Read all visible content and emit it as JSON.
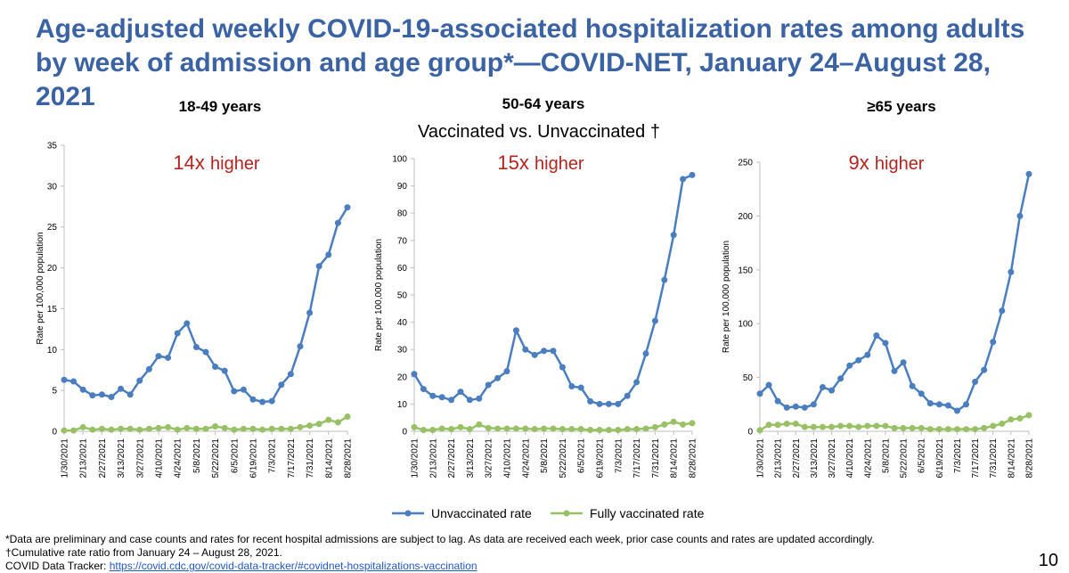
{
  "title": "Age-adjusted weekly COVID-19-associated hospitalization rates among adults by week of admission and age group*—COVID-NET, January 24–August 28, 2021",
  "subtitle": "Vaccinated vs. Unvaccinated †",
  "colors": {
    "title": "#3b63a4",
    "unvaccinated": "#4a7ec0",
    "vaccinated": "#98c064",
    "multiplier": "#b4231f",
    "axis": "#bfbfbf"
  },
  "legend": {
    "unvaccinated": "Unvaccinated rate",
    "vaccinated": "Fully vaccinated rate"
  },
  "footnotes": {
    "line1": "*Data are preliminary and case counts and rates for recent hospital admissions are subject to lag. As data are received each week, prior case counts and rates are updated accordingly.",
    "line2": "†Cumulative rate ratio from January 24 – August 28, 2021.",
    "line3_label": "COVID Data Tracker: ",
    "line3_link": "https://covid.cdc.gov/covid-data-tracker/#covidnet-hospitalizations-vaccination"
  },
  "page_number": "10",
  "chart_data": [
    {
      "type": "line",
      "title": "18-49 years",
      "multiplier_num": "14x",
      "multiplier_word": "higher",
      "ylabel": "Rate per 100,000 population",
      "ylim": [
        0,
        35
      ],
      "yticks": [
        "0",
        "5",
        "10",
        "15",
        "20",
        "25",
        "30",
        "35"
      ],
      "ytick_values": [
        0,
        5,
        10,
        15,
        20,
        25,
        30,
        35
      ],
      "xtick_labels": [
        "1/30/2021",
        "2/13/2021",
        "2/27/2021",
        "3/13/2021",
        "3/27/2021",
        "4/10/2021",
        "4/24/2021",
        "5/8/2021",
        "5/22/2021",
        "6/5/2021",
        "6/19/2021",
        "7/3/2021",
        "7/17/2021",
        "7/31/2021",
        "8/14/2021",
        "8/28/2021"
      ],
      "series": [
        {
          "name": "Unvaccinated rate",
          "values": [
            6.3,
            6.1,
            5.1,
            4.4,
            4.5,
            4.2,
            5.2,
            4.5,
            6.2,
            7.6,
            9.2,
            9.0,
            12.0,
            13.2,
            10.3,
            9.7,
            7.9,
            7.4,
            4.9,
            5.1,
            3.9,
            3.6,
            3.7,
            5.7,
            7.0,
            10.4,
            14.5,
            20.2,
            21.6,
            25.5,
            27.4
          ]
        },
        {
          "name": "Fully vaccinated rate",
          "values": [
            0.1,
            0.1,
            0.5,
            0.2,
            0.3,
            0.2,
            0.3,
            0.3,
            0.2,
            0.3,
            0.4,
            0.5,
            0.2,
            0.4,
            0.3,
            0.3,
            0.6,
            0.4,
            0.2,
            0.3,
            0.3,
            0.2,
            0.3,
            0.3,
            0.3,
            0.5,
            0.7,
            0.9,
            1.4,
            1.1,
            1.8
          ]
        }
      ]
    },
    {
      "type": "line",
      "title": "50-64 years",
      "multiplier_num": "15x",
      "multiplier_word": "higher",
      "ylabel": "Rate per 100,000 population",
      "ylim": [
        0,
        100
      ],
      "yticks": [
        "0",
        "10",
        "20",
        "30",
        "40",
        "50",
        "60",
        "70",
        "80",
        "90",
        "100"
      ],
      "ytick_values": [
        0,
        10,
        20,
        30,
        40,
        50,
        60,
        70,
        80,
        90,
        100
      ],
      "xtick_labels": [
        "1/30/2021",
        "2/13/2021",
        "2/27/2021",
        "3/13/2021",
        "3/27/2021",
        "4/10/2021",
        "4/24/2021",
        "5/8/2021",
        "5/22/2021",
        "6/5/2021",
        "6/19/2021",
        "7/3/2021",
        "7/17/2021",
        "7/31/2021",
        "8/14/2021",
        "8/28/2021"
      ],
      "series": [
        {
          "name": "Unvaccinated rate",
          "values": [
            21,
            15.5,
            13,
            12.5,
            11.5,
            14.5,
            11.5,
            12,
            17,
            19.5,
            22,
            37,
            30,
            28,
            29.5,
            29.5,
            23.5,
            16.5,
            16,
            11,
            10,
            10,
            10,
            13,
            18,
            28.5,
            40.5,
            55.5,
            72,
            92.5,
            94
          ]
        },
        {
          "name": "Fully vaccinated rate",
          "values": [
            1.5,
            0.5,
            0.5,
            1,
            0.8,
            1.5,
            0.8,
            2.5,
            1.2,
            1,
            1,
            1,
            1,
            0.8,
            1,
            1,
            0.8,
            0.8,
            0.8,
            0.5,
            0.5,
            0.5,
            0.5,
            0.8,
            0.8,
            1,
            1.5,
            2.5,
            3.5,
            2.5,
            3
          ]
        }
      ]
    },
    {
      "type": "line",
      "title": "≥65 years",
      "multiplier_num": "9x",
      "multiplier_word": "higher",
      "ylabel": "Rate per 100,000 population",
      "ylim": [
        0,
        250
      ],
      "yticks": [
        "0",
        "50",
        "100",
        "150",
        "200",
        "250"
      ],
      "ytick_values": [
        0,
        50,
        100,
        150,
        200,
        250
      ],
      "xtick_labels": [
        "1/30/2021",
        "2/13/2021",
        "2/27/2021",
        "3/13/2021",
        "3/27/2021",
        "4/10/2021",
        "4/24/2021",
        "5/8/2021",
        "5/22/2021",
        "6/5/2021",
        "6/19/2021",
        "7/3/2021",
        "7/17/2021",
        "7/31/2021",
        "8/14/2021",
        "8/28/2021"
      ],
      "series": [
        {
          "name": "Unvaccinated rate",
          "values": [
            35,
            43,
            28,
            22,
            23,
            22,
            25,
            41,
            38,
            49,
            61,
            66,
            71,
            89,
            82,
            56,
            64,
            42,
            35,
            26,
            25,
            24,
            19,
            25,
            46,
            57,
            83,
            112,
            148,
            200,
            239
          ]
        },
        {
          "name": "Fully vaccinated rate",
          "values": [
            1,
            6,
            6,
            7,
            7,
            4,
            4,
            4,
            4,
            5,
            5,
            4,
            5,
            5,
            5,
            3,
            3,
            3,
            3,
            2,
            2,
            2,
            2,
            2,
            2,
            3,
            5,
            7,
            11,
            12,
            15
          ]
        }
      ]
    }
  ]
}
